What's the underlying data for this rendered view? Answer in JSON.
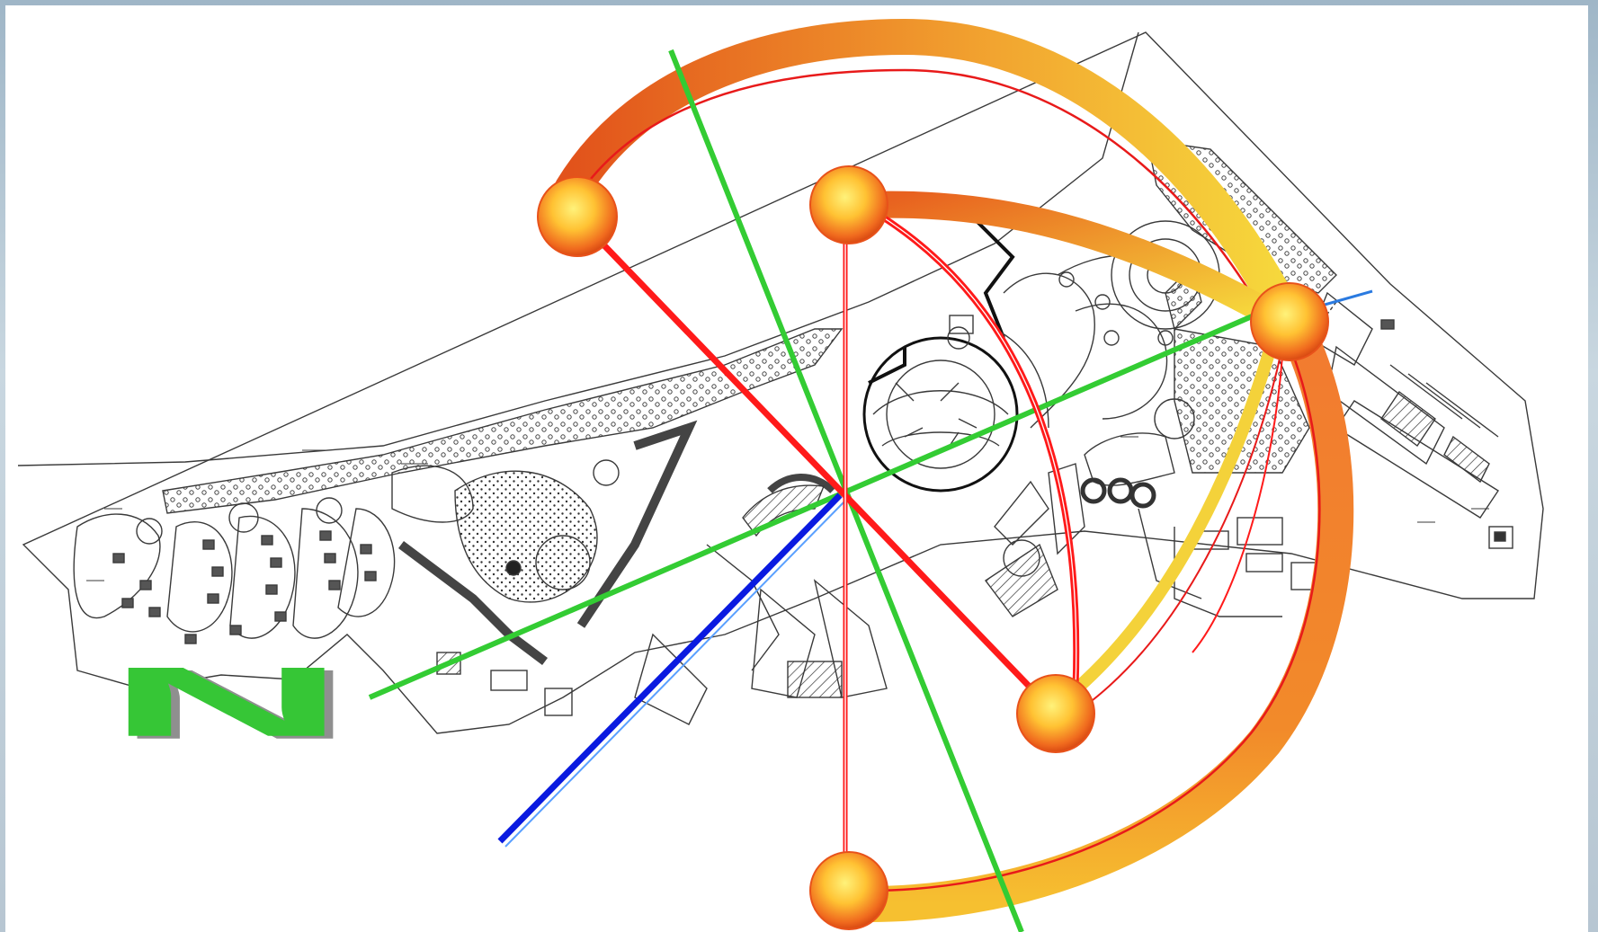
{
  "diagram": {
    "north_label": "N",
    "colors": {
      "background": "#ffffff",
      "plan_lines": "#3a3a3a",
      "red_axes": "#ff1a1a",
      "green_axes": "#33cc33",
      "blue_axis": "#0a1ae0",
      "orange_arc_start": "#e8521a",
      "orange_arc_end": "#f4d23a",
      "node_fill": "#ffcc33",
      "node_edge": "#e8521a",
      "north_letter": "#36c636"
    },
    "icons": {
      "nodes": "orb-node-icon",
      "north": "north-arrow-icon"
    }
  }
}
